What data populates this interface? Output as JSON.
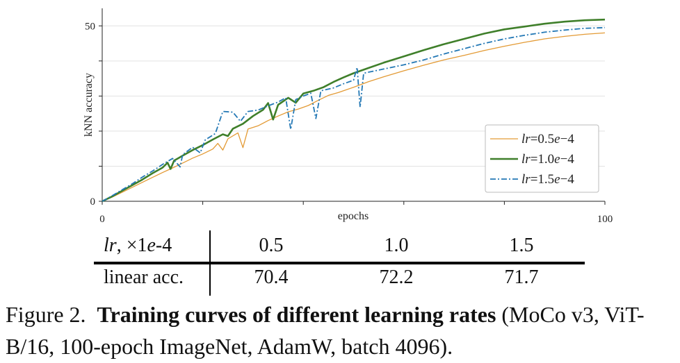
{
  "chart_data": {
    "type": "line",
    "xlabel": "epochs",
    "ylabel": "kNN accuracy",
    "xlim": [
      0,
      100
    ],
    "ylim": [
      0,
      55
    ],
    "x_tick_labels": [
      "0",
      "100"
    ],
    "y_tick_labels": [
      "0",
      "50"
    ],
    "grid": "horizontal",
    "legend_position": "bottom-right",
    "series": [
      {
        "name": "lr=0.5e-4",
        "legend_name": "=0.5",
        "legend_exp": "−4",
        "color": "#e39a34",
        "style": "solid",
        "width": 1.3,
        "points": [
          [
            0,
            0
          ],
          [
            2,
            1.2
          ],
          [
            4,
            2.6
          ],
          [
            6,
            4
          ],
          [
            8,
            5.4
          ],
          [
            10,
            6.8
          ],
          [
            12,
            8.2
          ],
          [
            14,
            9.5
          ],
          [
            16,
            10.9
          ],
          [
            18,
            12.3
          ],
          [
            20,
            13.5
          ],
          [
            22,
            14.9
          ],
          [
            23,
            16.5
          ],
          [
            24,
            14.6
          ],
          [
            25,
            17.8
          ],
          [
            27,
            19.5
          ],
          [
            28,
            15.3
          ],
          [
            29,
            20.6
          ],
          [
            31,
            21.5
          ],
          [
            33,
            23
          ],
          [
            35,
            24.3
          ],
          [
            37,
            25.5
          ],
          [
            39,
            26.3
          ],
          [
            41,
            27.3
          ],
          [
            43,
            28.8
          ],
          [
            45,
            30.2
          ],
          [
            47,
            31
          ],
          [
            50,
            32.5
          ],
          [
            53,
            34.1
          ],
          [
            56,
            35.5
          ],
          [
            60,
            37.2
          ],
          [
            64,
            38.8
          ],
          [
            68,
            40.3
          ],
          [
            72,
            41.6
          ],
          [
            76,
            43
          ],
          [
            80,
            44.2
          ],
          [
            84,
            45.3
          ],
          [
            88,
            46.3
          ],
          [
            92,
            47
          ],
          [
            96,
            47.6
          ],
          [
            100,
            48
          ]
        ]
      },
      {
        "name": "lr=1.0e-4",
        "legend_name": "=1.0",
        "legend_exp": "−4",
        "color": "#3f7f2a",
        "style": "solid",
        "width": 2.6,
        "points": [
          [
            0,
            0
          ],
          [
            2,
            1.4
          ],
          [
            4,
            3
          ],
          [
            6,
            4.6
          ],
          [
            8,
            6.2
          ],
          [
            10,
            8
          ],
          [
            12,
            9.6
          ],
          [
            13,
            11
          ],
          [
            13.6,
            9.2
          ],
          [
            14.3,
            11.6
          ],
          [
            16,
            13
          ],
          [
            18,
            14.6
          ],
          [
            20,
            16
          ],
          [
            22,
            17.6
          ],
          [
            24,
            19.1
          ],
          [
            25,
            18.6
          ],
          [
            26,
            20.7
          ],
          [
            28,
            22.1
          ],
          [
            30,
            24.3
          ],
          [
            32,
            26.1
          ],
          [
            33,
            28
          ],
          [
            34,
            23.3
          ],
          [
            35,
            27.5
          ],
          [
            37,
            29.5
          ],
          [
            38.5,
            28.1
          ],
          [
            40,
            30.7
          ],
          [
            42,
            31.5
          ],
          [
            44,
            32.5
          ],
          [
            46,
            34
          ],
          [
            48,
            35.3
          ],
          [
            50,
            36.5
          ],
          [
            53,
            38
          ],
          [
            56,
            39.5
          ],
          [
            60,
            41.3
          ],
          [
            64,
            43.1
          ],
          [
            68,
            44.8
          ],
          [
            72,
            46.3
          ],
          [
            76,
            47.8
          ],
          [
            80,
            49
          ],
          [
            84,
            49.8
          ],
          [
            88,
            50.6
          ],
          [
            92,
            51.2
          ],
          [
            96,
            51.6
          ],
          [
            100,
            51.8
          ]
        ]
      },
      {
        "name": "lr=1.5e-4",
        "legend_name": "=1.5",
        "legend_exp": "−4",
        "color": "#2378b5",
        "style": "dashdot",
        "width": 1.8,
        "points": [
          [
            0,
            0
          ],
          [
            2,
            1.6
          ],
          [
            4,
            3.3
          ],
          [
            6,
            5
          ],
          [
            8,
            6.9
          ],
          [
            10,
            8.6
          ],
          [
            12,
            10.5
          ],
          [
            14,
            12.2
          ],
          [
            15.5,
            9.8
          ],
          [
            16,
            13.3
          ],
          [
            18,
            15.4
          ],
          [
            19.5,
            13.8
          ],
          [
            20.5,
            17.5
          ],
          [
            22.5,
            19.3
          ],
          [
            24,
            25.6
          ],
          [
            26,
            25.4
          ],
          [
            27.5,
            22.8
          ],
          [
            29,
            25.6
          ],
          [
            31,
            26
          ],
          [
            33,
            27.2
          ],
          [
            35,
            28.3
          ],
          [
            36.5,
            29.5
          ],
          [
            37.5,
            20.5
          ],
          [
            38.5,
            29
          ],
          [
            40,
            30
          ],
          [
            41.5,
            30.8
          ],
          [
            42.5,
            23.6
          ],
          [
            43.5,
            31.5
          ],
          [
            46,
            32.3
          ],
          [
            48,
            33.5
          ],
          [
            50,
            34.5
          ],
          [
            50.7,
            38.2
          ],
          [
            51.3,
            26.8
          ],
          [
            52,
            36.5
          ],
          [
            56,
            37.7
          ],
          [
            60,
            38.9
          ],
          [
            64,
            40.3
          ],
          [
            68,
            42
          ],
          [
            72,
            43.5
          ],
          [
            76,
            45
          ],
          [
            80,
            46.3
          ],
          [
            84,
            47.3
          ],
          [
            88,
            48.2
          ],
          [
            92,
            48.8
          ],
          [
            96,
            49.3
          ],
          [
            100,
            49.5
          ]
        ]
      }
    ]
  },
  "table": {
    "header_label": "lr, ×1e-4",
    "header_values": [
      "0.5",
      "1.0",
      "1.5"
    ],
    "row_label": "linear acc.",
    "row_values": [
      "70.4",
      "72.2",
      "71.7"
    ]
  },
  "caption": {
    "number": "Figure 2.",
    "title": "Training curves of different learning rates",
    "rest": " (MoCo v3, ViT-B/16, 100-epoch ImageNet, AdamW, batch 4096)."
  }
}
